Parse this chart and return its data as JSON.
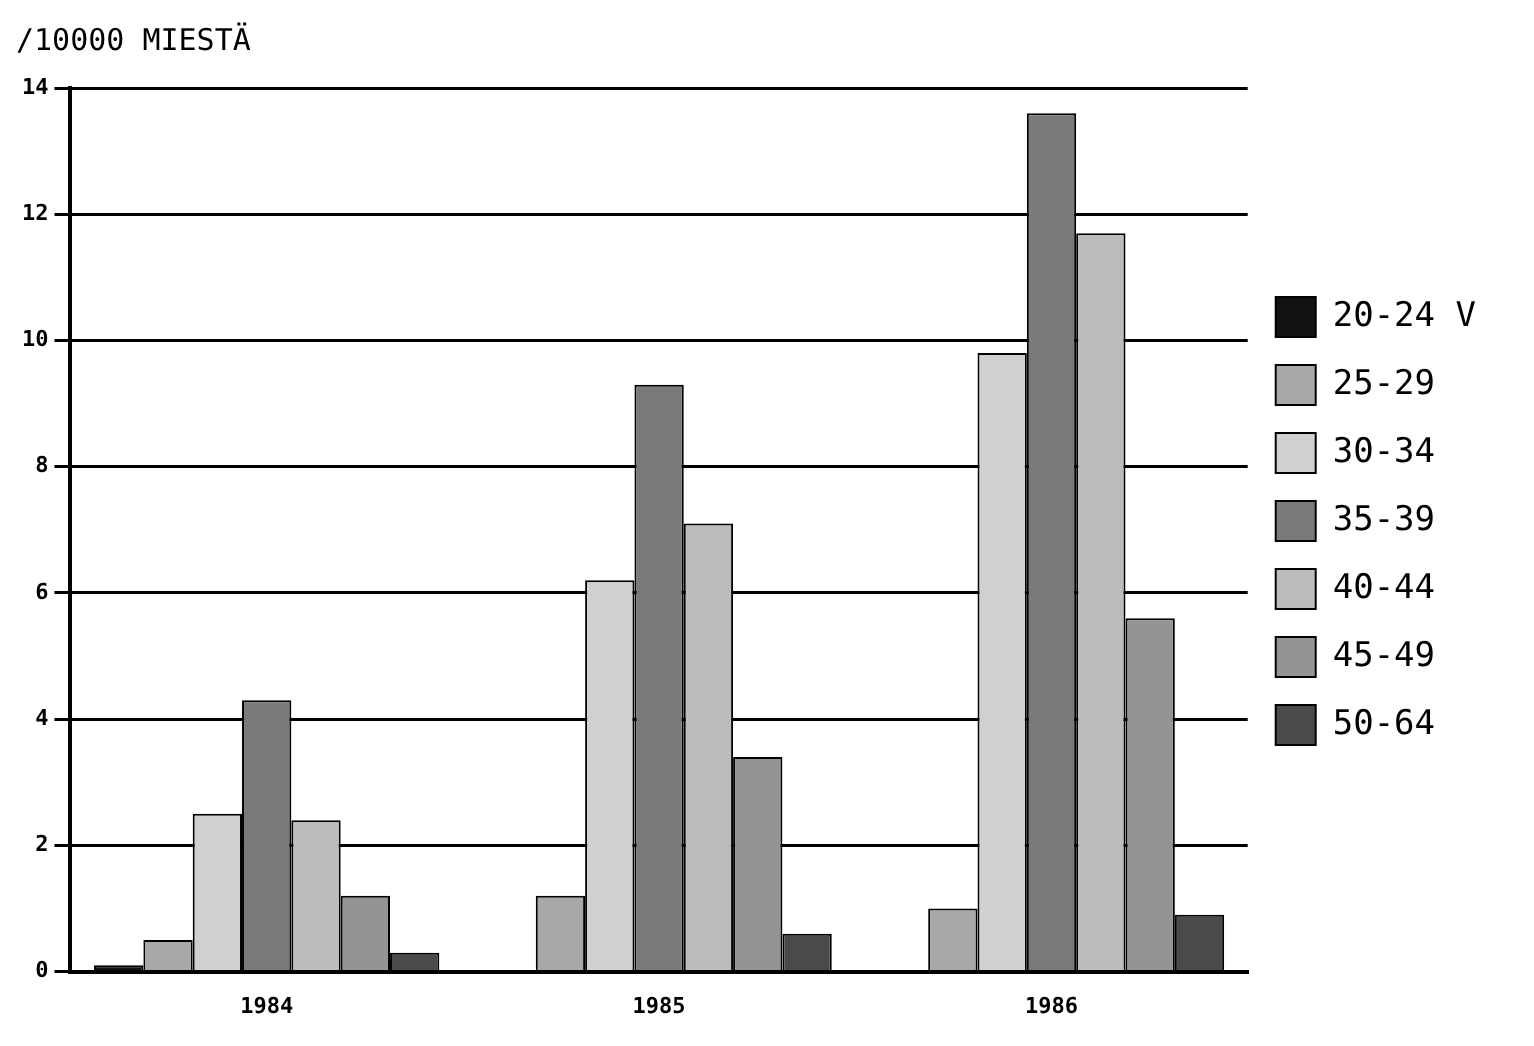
{
  "chart_data": {
    "type": "bar",
    "ylabel": "/10000 MIESTÄ",
    "categories": [
      "1984",
      "1985",
      "1986"
    ],
    "series": [
      {
        "name": "20-24 V",
        "color": "#111111",
        "values": [
          0.1,
          0,
          0
        ]
      },
      {
        "name": "25-29",
        "color": "#a8a8a8",
        "values": [
          0.5,
          1.2,
          1.0
        ]
      },
      {
        "name": "30-34",
        "color": "#d0d0d0",
        "values": [
          2.5,
          6.2,
          9.8
        ]
      },
      {
        "name": "35-39",
        "color": "#7a7a7a",
        "values": [
          4.3,
          9.3,
          13.6
        ]
      },
      {
        "name": "40-44",
        "color": "#bcbcbc",
        "values": [
          2.4,
          7.1,
          11.7
        ]
      },
      {
        "name": "45-49",
        "color": "#949494",
        "values": [
          1.2,
          3.4,
          5.6
        ]
      },
      {
        "name": "50-64",
        "color": "#4a4a4a",
        "values": [
          0.3,
          0.6,
          0.9
        ]
      }
    ],
    "ylim": [
      0,
      14
    ],
    "yticks": [
      0,
      2,
      4,
      6,
      8,
      10,
      12,
      14
    ],
    "grid": "y",
    "legend": "right"
  }
}
